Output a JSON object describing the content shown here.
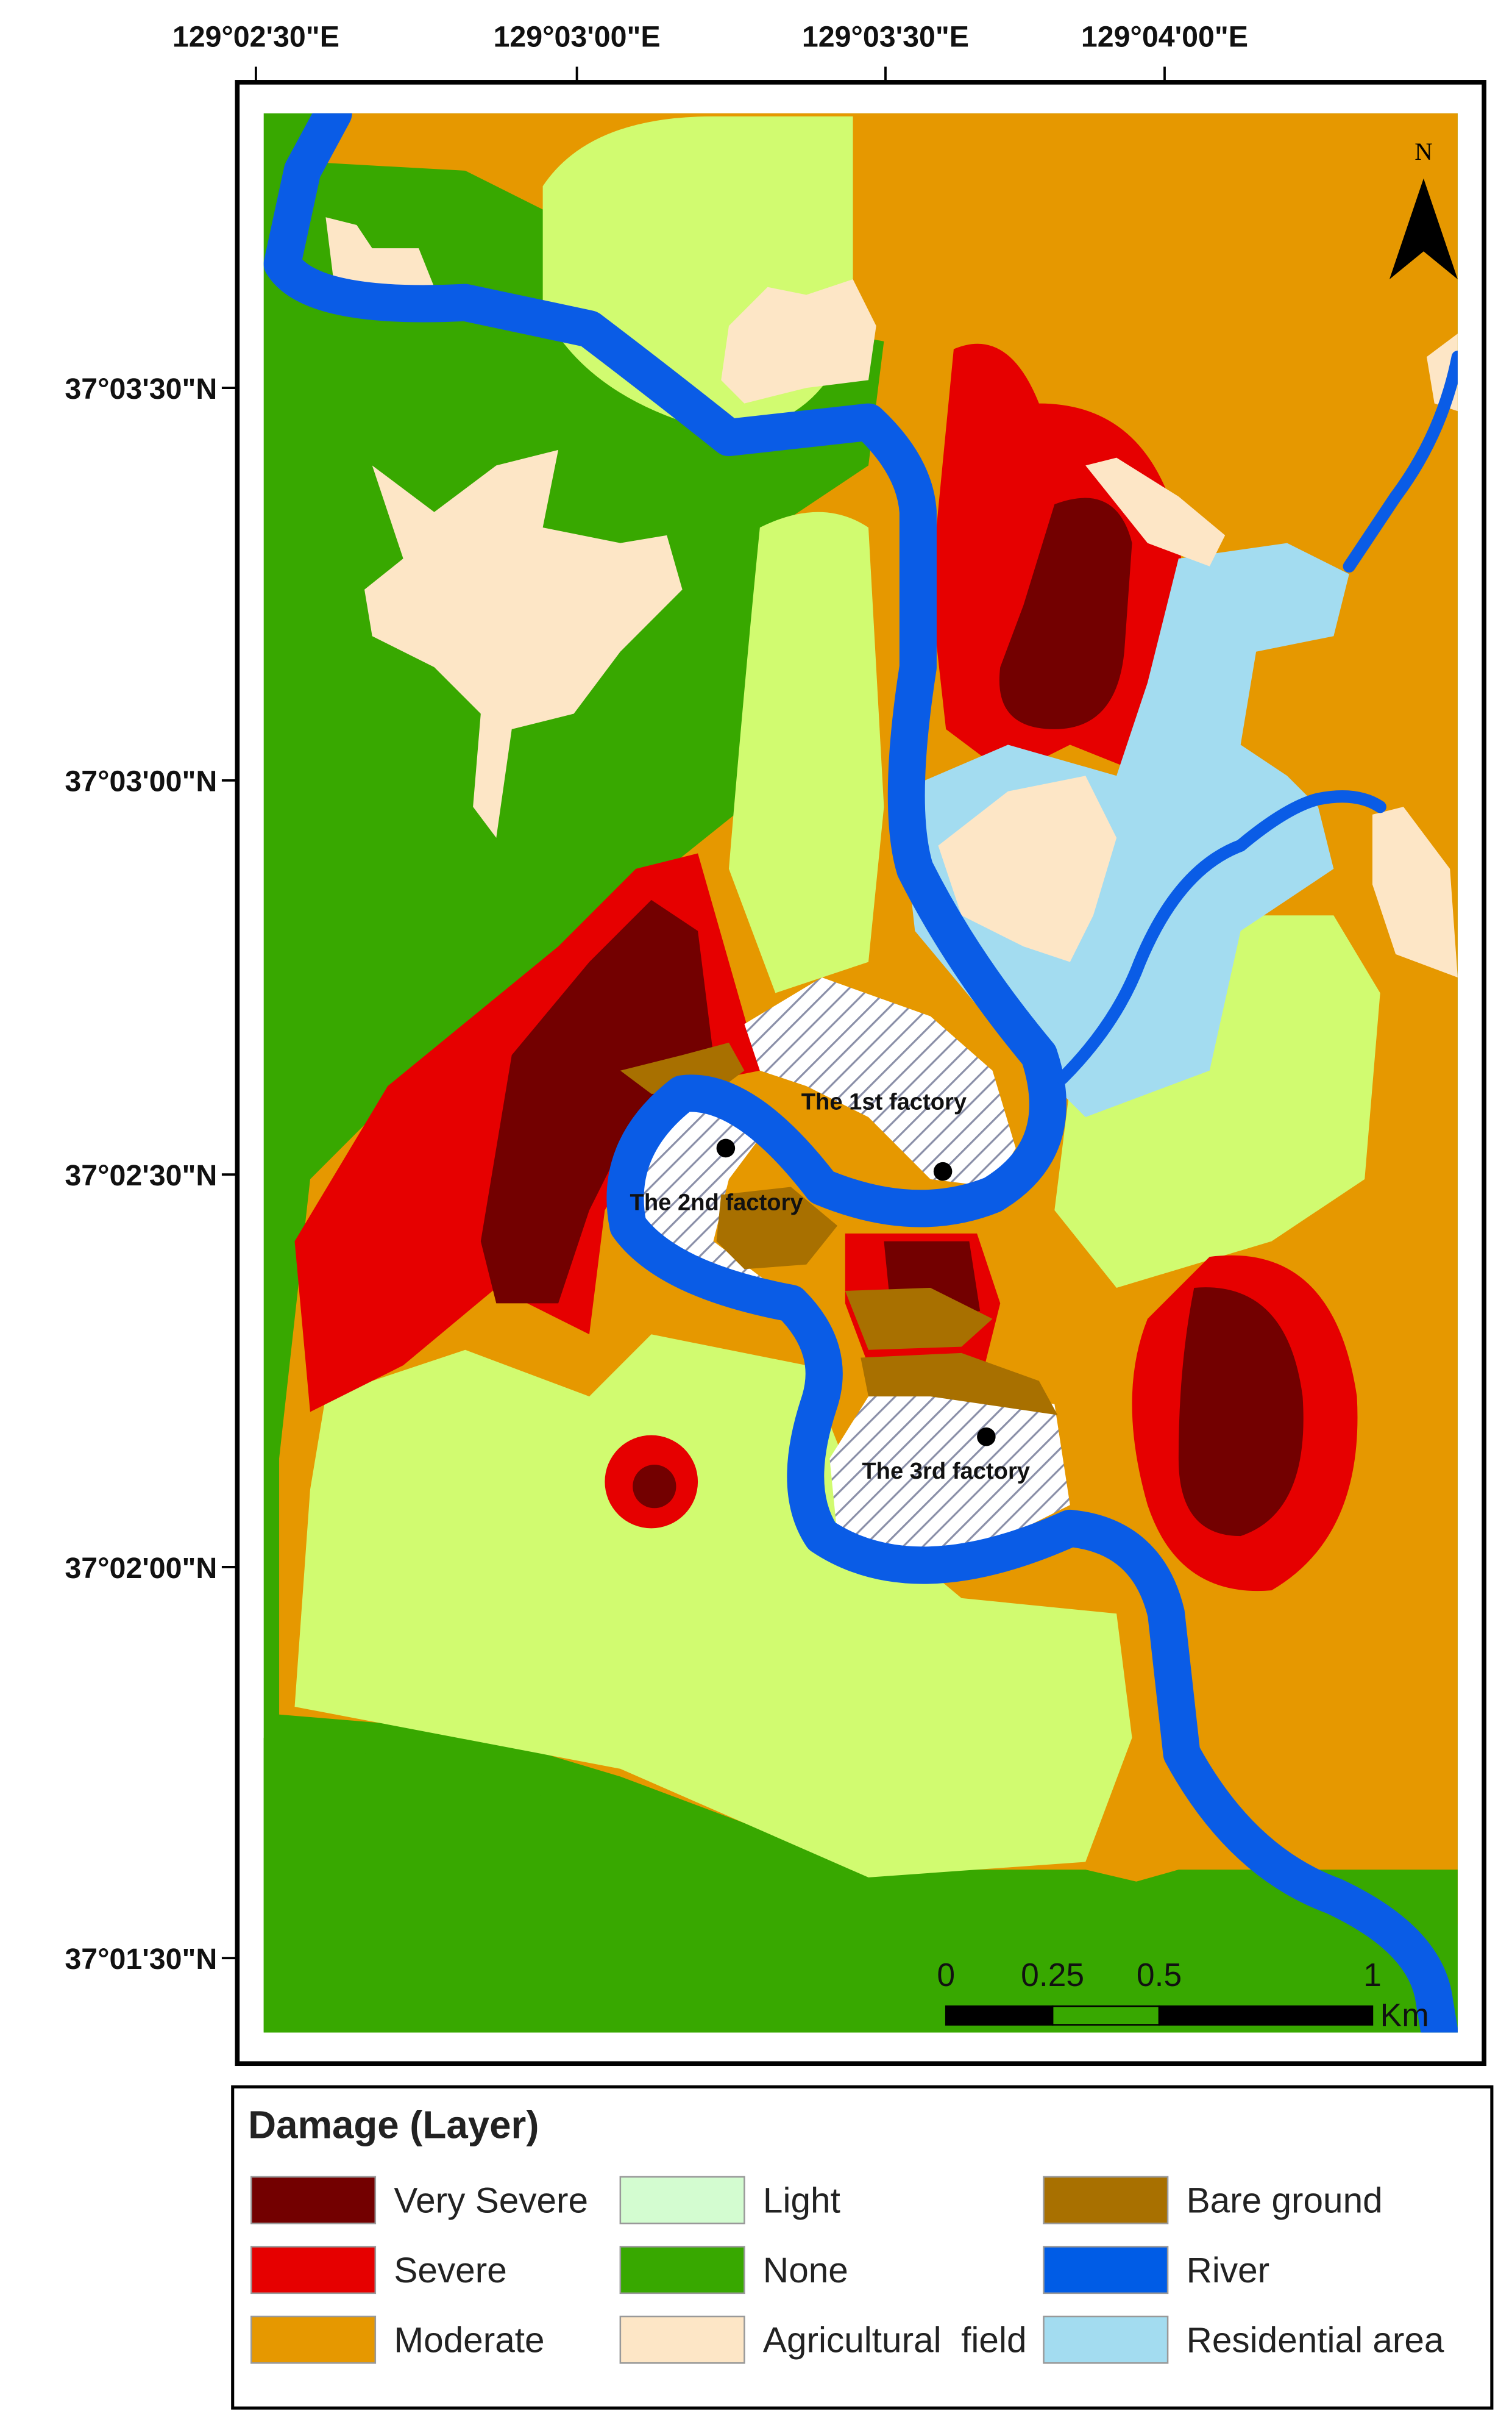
{
  "map": {
    "longitude_labels": [
      "129°02'30\"E",
      "129°03'00\"E",
      "129°03'30\"E",
      "129°04'00\"E"
    ],
    "latitude_labels": [
      "37°03'30\"N",
      "37°03'00\"N",
      "37°02'30\"N",
      "37°02'00\"N",
      "37°01'30\"N"
    ],
    "north_label": "N",
    "factories": [
      "The 1st factory",
      "The 2nd factory",
      "The 3rd factory"
    ],
    "scale_bar": {
      "ticks": [
        0,
        0.25,
        0.5,
        1
      ],
      "unit": "Km"
    }
  },
  "legend": {
    "title": "Damage (Layer)",
    "items": [
      {
        "label": "Very Severe",
        "color": "#730000"
      },
      {
        "label": "Severe",
        "color": "#e60000"
      },
      {
        "label": "Moderate",
        "color": "#e69800"
      },
      {
        "label": "Light",
        "color": "#d3fcd0"
      },
      {
        "label": "None",
        "color": "#38a800"
      },
      {
        "label": "Agricultural  field",
        "color": "#fde6c6"
      },
      {
        "label": "Bare ground",
        "color": "#a87000"
      },
      {
        "label": "River",
        "color": "#005ce6"
      },
      {
        "label": "Residential area",
        "color": "#a3dcf0"
      }
    ]
  }
}
